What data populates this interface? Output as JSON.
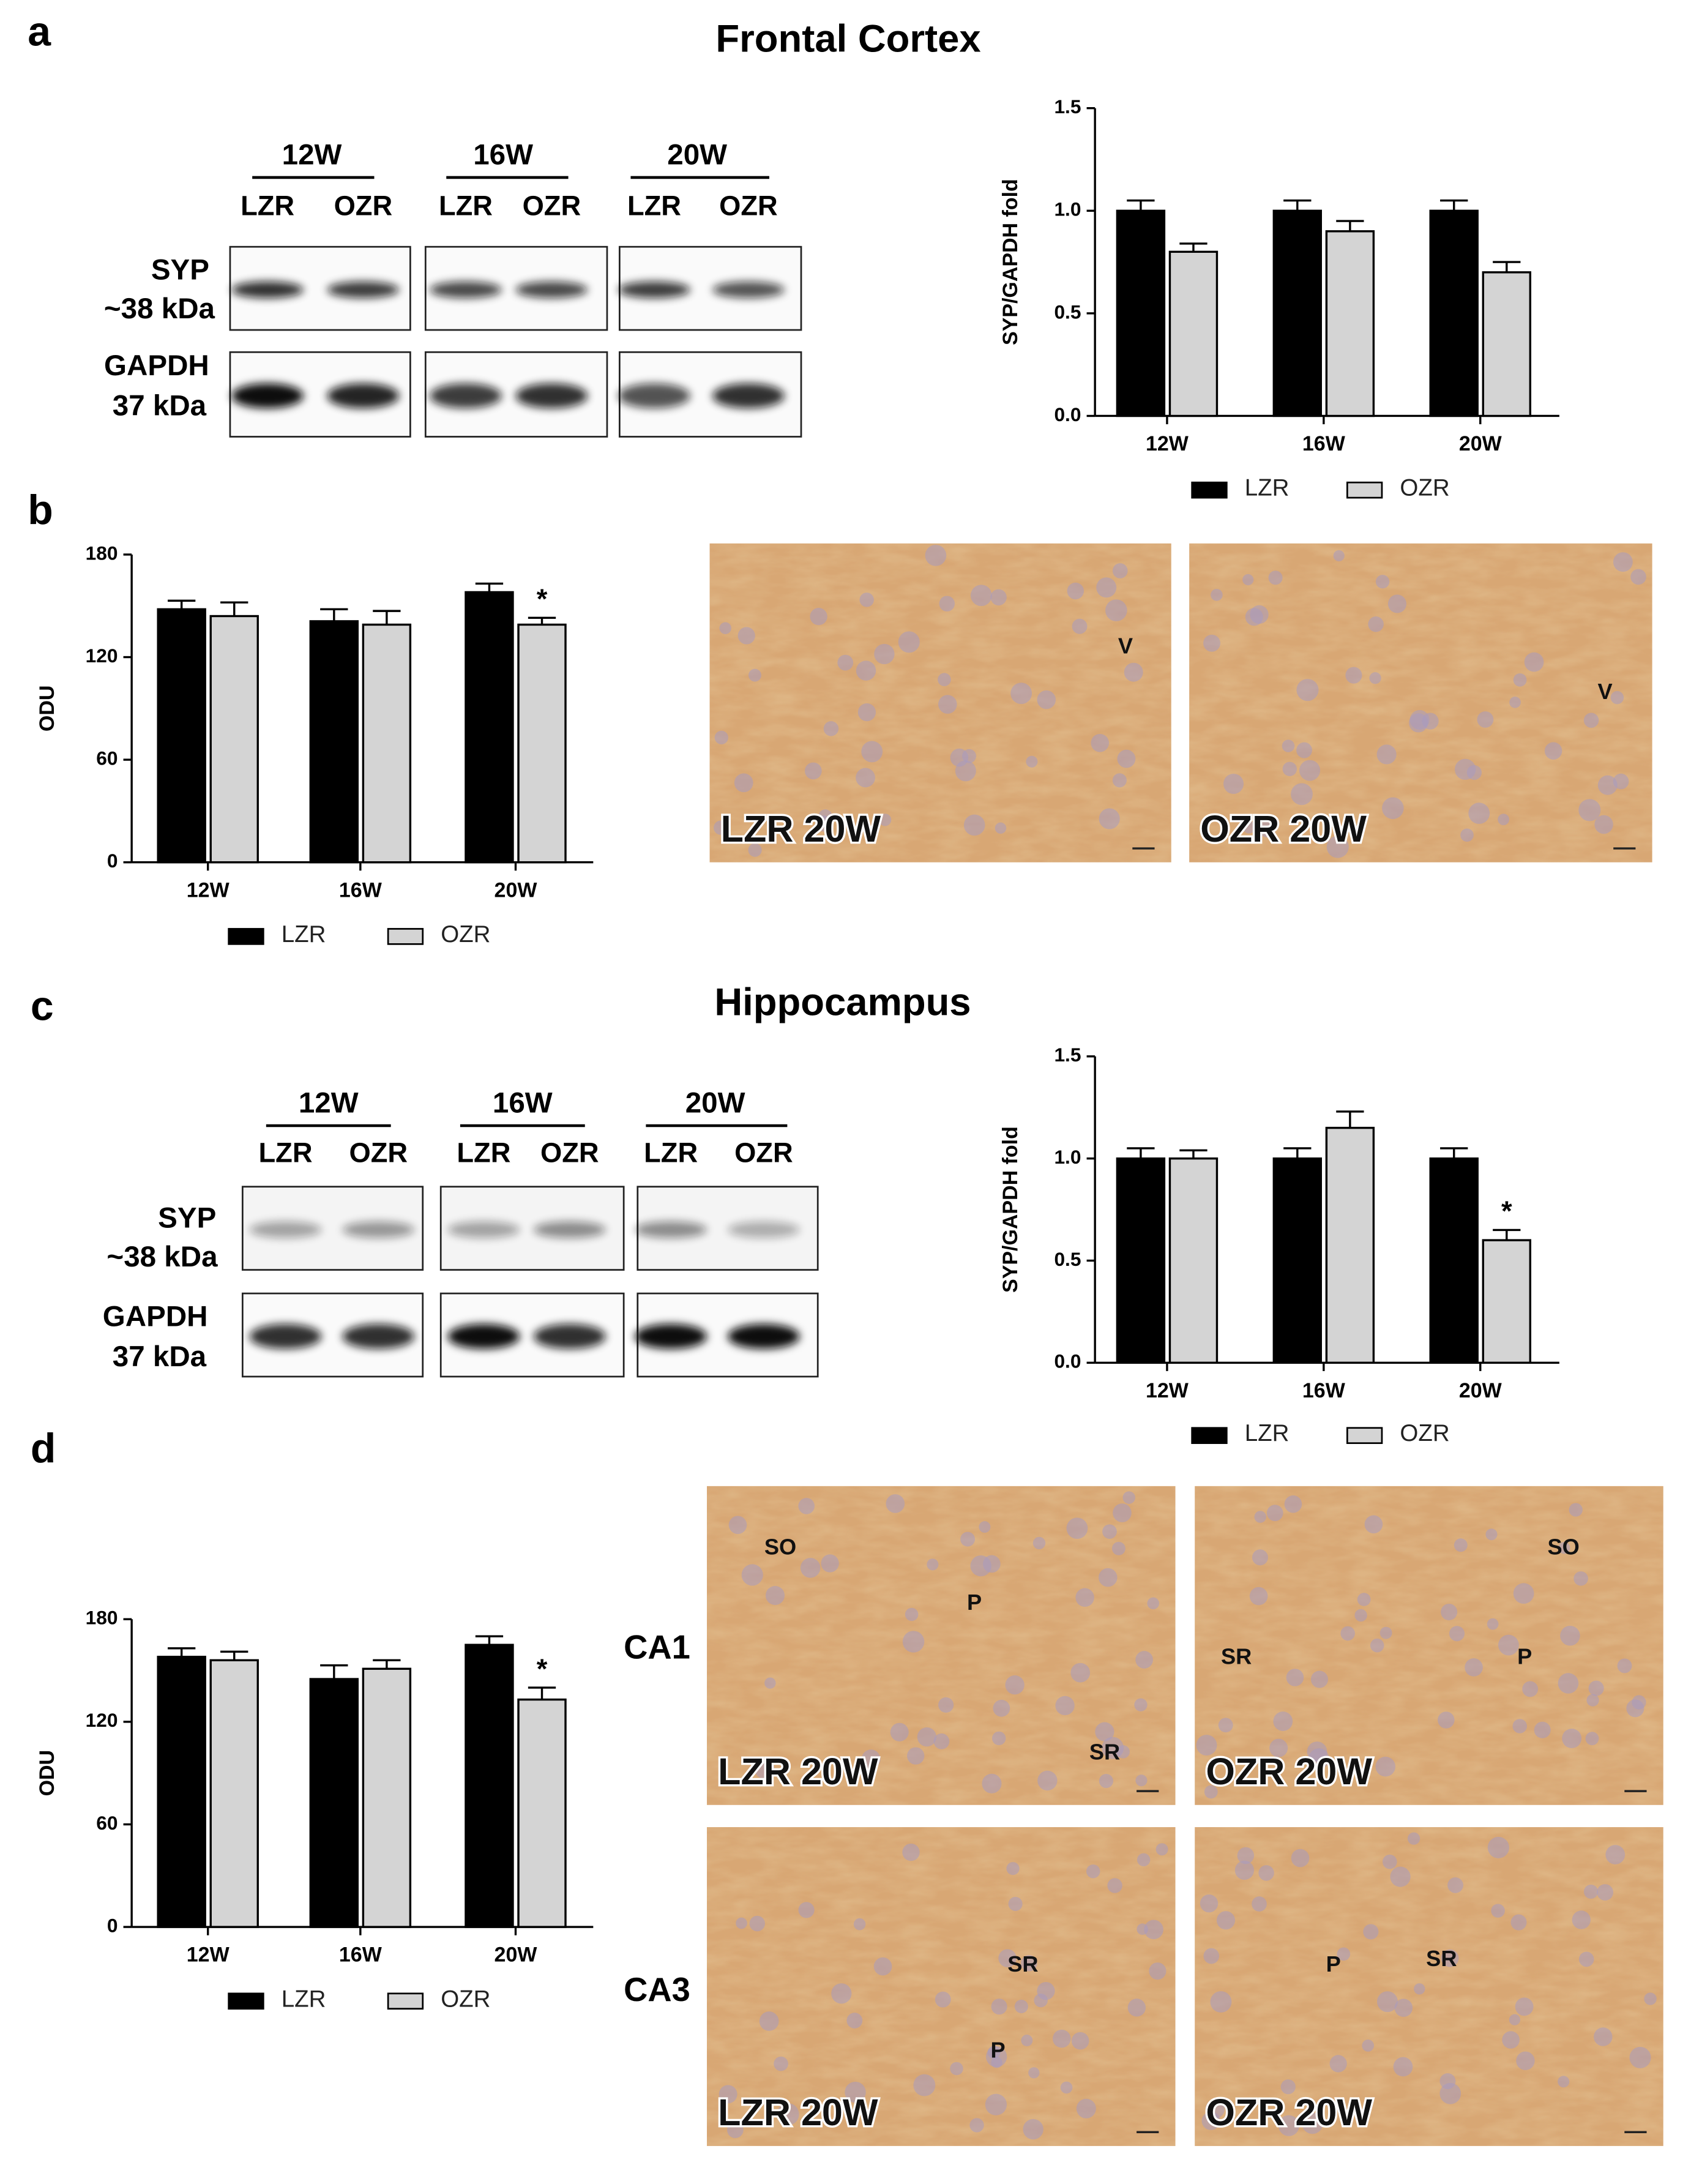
{
  "panel_labels": [
    "a",
    "b",
    "c",
    "d"
  ],
  "sections": [
    "Frontal Cortex",
    "Hippocampus"
  ],
  "blots": [
    {
      "groups": [
        "12W",
        "16W",
        "20W"
      ],
      "lanes": [
        "LZR",
        "OZR",
        "LZR",
        "OZR",
        "LZR",
        "OZR"
      ],
      "rows": [
        [
          "SYP",
          "~38 kDa"
        ],
        [
          "GAPDH",
          "37 kDa"
        ]
      ]
    },
    {
      "groups": [
        "12W",
        "16W",
        "20W"
      ],
      "lanes": [
        "LZR",
        "OZR",
        "LZR",
        "OZR",
        "LZR",
        "OZR"
      ],
      "rows": [
        [
          "SYP",
          "~38 kDa"
        ],
        [
          "GAPDH",
          "37 kDa"
        ]
      ]
    }
  ],
  "region_labels": [
    "CA1",
    "CA3"
  ],
  "micrographs": [
    {
      "label": "LZR 20W",
      "marks": [
        "V"
      ]
    },
    {
      "label": "OZR 20W",
      "marks": [
        "V"
      ]
    },
    {
      "label": "LZR 20W",
      "marks": [
        "SO",
        "P",
        "SR"
      ]
    },
    {
      "label": "OZR 20W",
      "marks": [
        "SO",
        "SR",
        "P"
      ]
    },
    {
      "label": "LZR 20W",
      "marks": [
        "SR",
        "P"
      ]
    },
    {
      "label": "OZR 20W",
      "marks": [
        "P",
        "SR"
      ]
    }
  ],
  "chart_data": [
    {
      "type": "bar",
      "y_label": "SYP/GAPDH fold",
      "categories": [
        "12W",
        "16W",
        "20W"
      ],
      "series": [
        {
          "name": "LZR",
          "color": "#000000",
          "values": [
            1.0,
            1.0,
            1.0
          ],
          "errors": [
            0.05,
            0.05,
            0.05
          ]
        },
        {
          "name": "OZR",
          "color": "#d4d4d4",
          "values": [
            0.8,
            0.9,
            0.7
          ],
          "errors": [
            0.04,
            0.05,
            0.05
          ]
        }
      ],
      "ylim": [
        0,
        1.5
      ],
      "yticks": [
        {
          "value": 0,
          "label": "0.0"
        },
        {
          "value": 0.5,
          "label": "0.5"
        },
        {
          "value": 1,
          "label": "1.0"
        },
        {
          "value": 1.5,
          "label": "1.5"
        }
      ]
    },
    {
      "type": "bar",
      "y_label": "ODU",
      "categories": [
        "12W",
        "16W",
        "20W"
      ],
      "series": [
        {
          "name": "LZR",
          "color": "#000000",
          "values": [
            148,
            141,
            158
          ],
          "errors": [
            5,
            7,
            5
          ]
        },
        {
          "name": "OZR",
          "color": "#d4d4d4",
          "values": [
            144,
            139,
            139
          ],
          "errors": [
            8,
            8,
            4
          ]
        }
      ],
      "ylim": [
        0,
        180
      ],
      "yticks": [
        0,
        60,
        120,
        180
      ],
      "annotations": [
        {
          "text": "*",
          "category": "20W",
          "series": "OZR"
        }
      ]
    },
    {
      "type": "bar",
      "y_label": "SYP/GAPDH fold",
      "categories": [
        "12W",
        "16W",
        "20W"
      ],
      "series": [
        {
          "name": "LZR",
          "color": "#000000",
          "values": [
            1.0,
            1.0,
            1.0
          ],
          "errors": [
            0.05,
            0.05,
            0.05
          ]
        },
        {
          "name": "OZR",
          "color": "#d4d4d4",
          "values": [
            1.0,
            1.15,
            0.6
          ],
          "errors": [
            0.04,
            0.08,
            0.05
          ]
        }
      ],
      "ylim": [
        0,
        1.5
      ],
      "yticks": [
        {
          "value": 0,
          "label": "0.0"
        },
        {
          "value": 0.5,
          "label": "0.5"
        },
        {
          "value": 1,
          "label": "1.0"
        },
        {
          "value": 1.5,
          "label": "1.5"
        }
      ],
      "annotations": [
        {
          "text": "*",
          "category": "20W",
          "series": "OZR"
        }
      ]
    },
    {
      "type": "bar",
      "y_label": "ODU",
      "categories": [
        "12W",
        "16W",
        "20W"
      ],
      "series": [
        {
          "name": "LZR",
          "color": "#000000",
          "values": [
            158,
            145,
            165
          ],
          "errors": [
            5,
            8,
            5
          ]
        },
        {
          "name": "OZR",
          "color": "#d4d4d4",
          "values": [
            156,
            151,
            133
          ],
          "errors": [
            5,
            5,
            7
          ]
        }
      ],
      "ylim": [
        0,
        180
      ],
      "yticks": [
        0,
        60,
        120,
        180
      ],
      "annotations": [
        {
          "text": "*",
          "category": "20W",
          "series": "OZR"
        }
      ]
    }
  ]
}
